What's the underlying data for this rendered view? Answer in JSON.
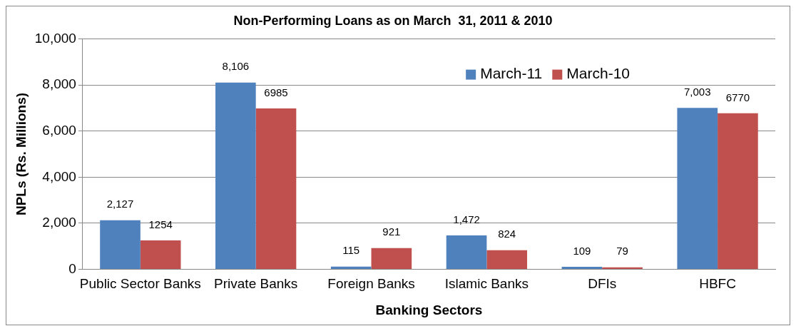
{
  "chart_data": {
    "type": "bar",
    "title": "Non-Performing Loans as on March  31, 2011 & 2010",
    "xlabel": "Banking Sectors",
    "ylabel": "NPLs (Rs. Millions)",
    "categories": [
      "Public Sector Banks",
      "Private Banks",
      "Foreign Banks",
      "Islamic Banks",
      "DFIs",
      "HBFC"
    ],
    "series": [
      {
        "name": "March-11",
        "color": "#4f81bd",
        "values": [
          2127,
          8106,
          115,
          1472,
          109,
          7003
        ],
        "value_labels": [
          "2,127",
          "8,106",
          "115",
          "1,472",
          "109",
          "7,003"
        ]
      },
      {
        "name": "March-10",
        "color": "#c0504d",
        "values": [
          1254,
          6985,
          921,
          824,
          79,
          6770
        ],
        "value_labels": [
          "1254",
          "6985",
          "921",
          "824",
          "79",
          "6770"
        ]
      }
    ],
    "ylim": [
      0,
      10000
    ],
    "yticks": [
      {
        "value": 0,
        "label": "0"
      },
      {
        "value": 2000,
        "label": "2,000"
      },
      {
        "value": 4000,
        "label": "4,000"
      },
      {
        "value": 6000,
        "label": "6,000"
      },
      {
        "value": 8000,
        "label": "8,000"
      },
      {
        "value": 10000,
        "label": "10,000"
      }
    ],
    "grid": "y",
    "legend": "top right"
  }
}
